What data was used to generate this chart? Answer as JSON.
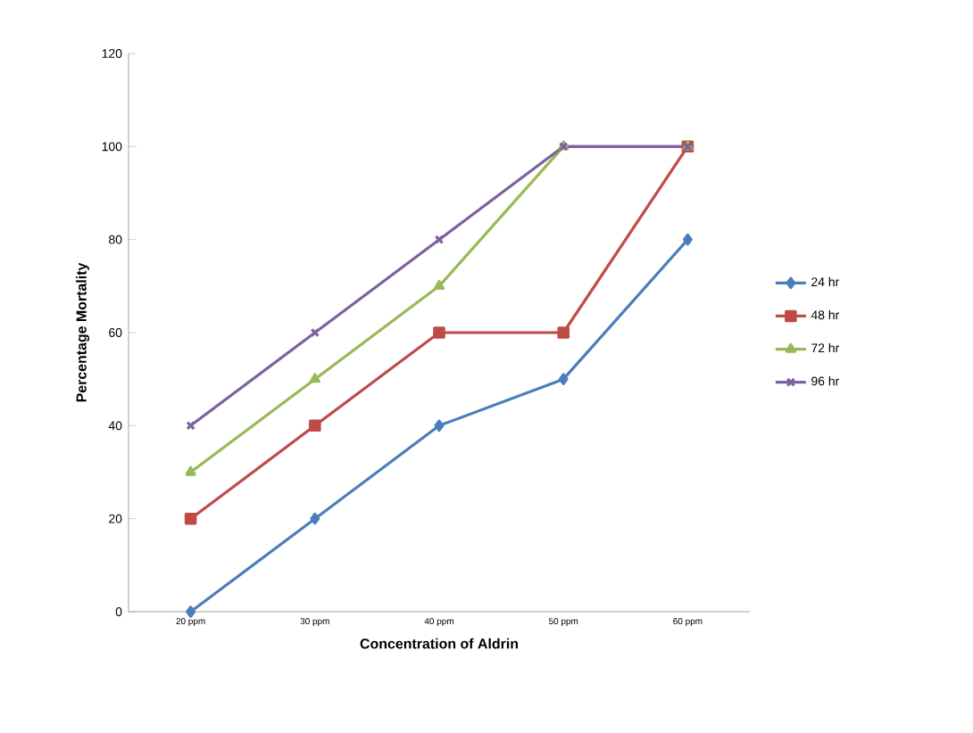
{
  "chart_data": {
    "type": "line",
    "xlabel": "Concentration of Aldrin",
    "ylabel": "Percentage Mortality",
    "categories": [
      "20 ppm",
      "30 ppm",
      "40 ppm",
      "50 ppm",
      "60 ppm"
    ],
    "series": [
      {
        "name": "24 hr",
        "color": "#4a7ebb",
        "marker": "diamond",
        "values": [
          0,
          20,
          40,
          50,
          80
        ]
      },
      {
        "name": "48 hr",
        "color": "#be4b48",
        "marker": "square",
        "values": [
          20,
          40,
          60,
          60,
          100
        ]
      },
      {
        "name": "72 hr",
        "color": "#98b954",
        "marker": "triangle",
        "values": [
          30,
          50,
          70,
          100,
          100
        ]
      },
      {
        "name": "96 hr",
        "color": "#7d60a0",
        "marker": "cross",
        "values": [
          40,
          60,
          80,
          100,
          100
        ]
      }
    ],
    "ylim": [
      0,
      120
    ],
    "yticks": [
      0,
      20,
      40,
      60,
      80,
      100,
      120
    ],
    "grid": false,
    "legend": "right"
  }
}
